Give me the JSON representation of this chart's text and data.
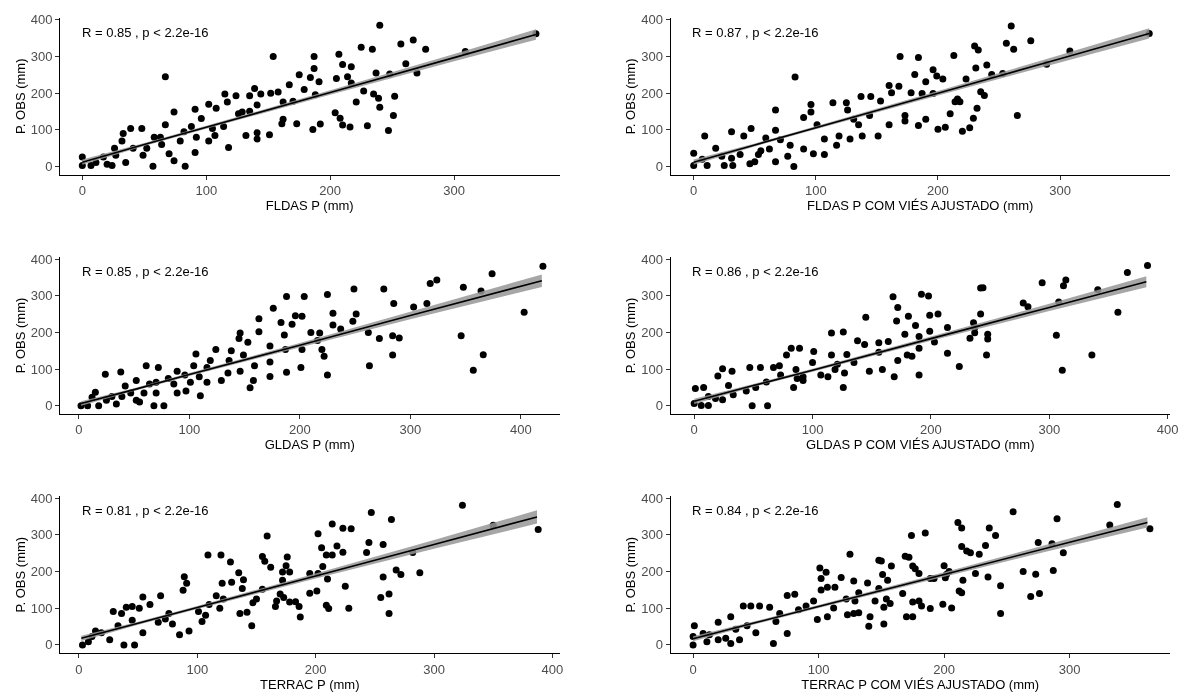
{
  "chart_data": [
    {
      "type": "scatter",
      "xlabel": "FLDAS P (mm)",
      "ylabel": "P. OBS (mm)",
      "xlim": [
        -18,
        385
      ],
      "ylim": [
        -22,
        405
      ],
      "xticks": [
        0,
        100,
        200,
        300
      ],
      "yticks": [
        0,
        100,
        200,
        300,
        400
      ],
      "grid": false,
      "marker": "circle",
      "annotations": [
        "R = 0.85 , p < 2.2e-16"
      ],
      "series": [
        {
          "color": "#000000",
          "x": [
            366,
            240,
            309,
            267,
            257,
            277,
            225,
            234,
            207,
            187,
            154,
            67,
            261,
            270,
            248,
            237,
            210,
            217,
            187,
            175,
            184,
            191,
            205,
            214,
            217,
            227,
            235,
            239,
            252,
            221,
            240,
            251,
            204,
            208,
            210,
            216,
            230,
            247,
            186,
            192,
            173,
            170,
            188,
            179,
            167,
            144,
            152,
            158,
            139,
            135,
            124,
            115,
            117,
            162,
            162,
            161,
            151,
            141,
            132,
            141,
            135,
            126,
            118,
            108,
            102,
            91,
            96,
            105,
            107,
            102,
            91,
            83,
            74,
            70,
            67,
            74,
            82,
            88,
            63,
            57,
            52,
            49,
            48,
            39,
            33,
            32,
            41,
            35,
            27,
            17,
            20,
            11,
            0,
            0,
            7,
            24,
            26,
            58,
            64,
            79,
            114,
            129,
            141,
            92
          ],
          "values": [
            362,
            385,
            314,
            345,
            334,
            320,
            325,
            320,
            306,
            300,
            300,
            245,
            280,
            255,
            252,
            255,
            278,
            272,
            267,
            250,
            243,
            231,
            240,
            245,
            228,
            206,
            198,
            186,
            192,
            176,
            162,
            139,
            147,
            132,
            113,
            108,
            111,
            98,
            101,
            116,
            117,
            178,
            196,
            210,
            223,
            198,
            200,
            203,
            213,
            193,
            193,
            198,
            176,
            176,
            129,
            117,
            87,
            92,
            85,
            75,
            151,
            144,
            52,
            159,
            170,
            156,
            131,
            104,
            85,
            70,
            38,
            1,
            16,
            35,
            114,
            149,
            95,
            109,
            80,
            1,
            50,
            31,
            104,
            104,
            90,
            70,
            50,
            11,
            31,
            26,
            6,
            11,
            26,
            3,
            3,
            3,
            50,
            80,
            60,
            70,
            109,
            149,
            168,
            80
          ]
        },
        {
          "type": "line",
          "marker": "none",
          "color": "#000000",
          "x": [
            0,
            50,
            100,
            200,
            300,
            366
          ],
          "values": [
            12,
            60,
            107,
            202,
            297,
            360
          ],
          "lower": [
            5,
            56,
            103,
            196,
            287,
            346
          ],
          "upper": [
            19,
            64,
            111,
            208,
            307,
            374
          ]
        }
      ]
    },
    {
      "type": "scatter",
      "xlabel": "FLDAS P COM VIÉS AJUSTADO (mm)",
      "ylabel": "P. OBS (mm)",
      "xlim": [
        -19,
        390
      ],
      "ylim": [
        -22,
        405
      ],
      "xticks": [
        0,
        100,
        200,
        300
      ],
      "yticks": [
        0,
        100,
        200,
        300,
        400
      ],
      "grid": false,
      "marker": "circle",
      "annotations": [
        "R = 0.87 , p < 2.2e-16"
      ],
      "series": [
        {
          "color": "#000000",
          "x": [
            373,
            260,
            276,
            256,
            262,
            230,
            233,
            213,
            184,
            169,
            83,
            308,
            289,
            253,
            244,
            240,
            231,
            223,
            196,
            199,
            204,
            190,
            181,
            168,
            162,
            160,
            178,
            187,
            196,
            235,
            238,
            216,
            214,
            218,
            232,
            229,
            265,
            210,
            190,
            184,
            200,
            206,
            220,
            226,
            173,
            173,
            160,
            153,
            151,
            144,
            137,
            145,
            125,
            114,
            126,
            131,
            135,
            138,
            128,
            119,
            117,
            107,
            101,
            96,
            96,
            90,
            90,
            98,
            82,
            79,
            71,
            67,
            67,
            62,
            55,
            59,
            47,
            41,
            31,
            50,
            46,
            38,
            31,
            23,
            18,
            9,
            0,
            0,
            7,
            11,
            25,
            32,
            53,
            67,
            77,
            107
          ],
          "values": [
            363,
            383,
            343,
            336,
            320,
            329,
            318,
            303,
            297,
            300,
            244,
            315,
            279,
            254,
            251,
            277,
            269,
            239,
            264,
            247,
            239,
            231,
            251,
            219,
            201,
            221,
            201,
            199,
            199,
            204,
            194,
            184,
            177,
            177,
            159,
            132,
            139,
            144,
            129,
            112,
            102,
            107,
            96,
            106,
            139,
            124,
            114,
            179,
            83,
            139,
            191,
            191,
            174,
            174,
            154,
            129,
            114,
            83,
            75,
            83,
            58,
            75,
            114,
            169,
            149,
            134,
            48,
            35,
            0,
            58,
            73,
            99,
            154,
            48,
            43,
            78,
            104,
            83,
            95,
            13,
            8,
            33,
            23,
            28,
            50,
            83,
            36,
            3,
            20,
            3,
            3,
            3,
            33,
            13,
            28,
            33
          ]
        },
        {
          "type": "line",
          "marker": "none",
          "color": "#000000",
          "x": [
            0,
            50,
            100,
            200,
            300,
            373
          ],
          "values": [
            12,
            59,
            106,
            200,
            294,
            363
          ],
          "lower": [
            5,
            55,
            102,
            194,
            284,
            349
          ],
          "upper": [
            19,
            63,
            110,
            206,
            304,
            377
          ]
        }
      ]
    },
    {
      "type": "scatter",
      "xlabel": "GLDAS P (mm)",
      "ylabel": "P. OBS (mm)",
      "xlim": [
        -17,
        435
      ],
      "ylim": [
        -22,
        405
      ],
      "xticks": [
        0,
        100,
        200,
        300,
        400
      ],
      "yticks": [
        0,
        100,
        200,
        300,
        400
      ],
      "grid": false,
      "marker": "circle",
      "annotations": [
        "R = 0.85 , p < 2.2e-16"
      ],
      "series": [
        {
          "color": "#000000",
          "x": [
            420,
            374,
            324,
            318,
            348,
            364,
            276,
            249,
            225,
            204,
            188,
            403,
            346,
            357,
            366,
            315,
            303,
            285,
            251,
            248,
            230,
            230,
            237,
            262,
            272,
            284,
            290,
            284,
            263,
            225,
            218,
            216,
            220,
            222,
            210,
            202,
            196,
            193,
            183,
            176,
            163,
            201,
            202,
            186,
            187,
            188,
            163,
            173,
            173,
            173,
            159,
            158,
            155,
            153,
            149,
            146,
            138,
            146,
            145,
            135,
            119,
            124,
            116,
            109,
            110,
            97,
            96,
            104,
            106,
            89,
            86,
            81,
            72,
            61,
            70,
            70,
            77,
            68,
            55,
            59,
            64,
            52,
            42,
            38,
            24,
            39,
            34,
            25,
            15,
            12,
            2,
            8,
            18,
            30,
            47,
            52,
            89,
            101,
            116,
            129,
            136
          ],
          "values": [
            380,
            360,
            343,
            333,
            323,
            313,
            318,
            318,
            303,
            298,
            298,
            255,
            191,
            97,
            139,
            279,
            269,
            279,
            250,
            230,
            252,
            220,
            209,
            200,
            183,
            191,
            185,
            138,
            109,
            84,
            198,
            178,
            153,
            135,
            200,
            244,
            245,
            222,
            227,
            266,
            237,
            104,
            153,
            193,
            153,
            91,
            202,
            163,
            119,
            80,
            109,
            69,
            49,
            173,
            138,
            94,
            150,
            198,
            183,
            89,
            123,
            153,
            104,
            79,
            27,
            40,
            84,
            109,
            141,
            94,
            59,
            74,
            104,
            109,
            64,
            35,
            0,
            0,
            10,
            35,
            59,
            69,
            54,
            92,
            86,
            25,
            5,
            15,
            37,
            23,
            0,
            0,
            0,
            25,
            35,
            15,
            35,
            64,
            64,
            69,
            123
          ]
        },
        {
          "type": "line",
          "marker": "none",
          "color": "#000000",
          "x": [
            2,
            50,
            100,
            200,
            300,
            419
          ],
          "values": [
            6,
            44,
            85,
            165,
            246,
            341
          ],
          "lower": [
            0,
            40,
            81,
            159,
            236,
            324
          ],
          "upper": [
            12,
            48,
            89,
            171,
            256,
            358
          ]
        }
      ]
    },
    {
      "type": "scatter",
      "xlabel": "GLDAS P COM VIÉS AJUSTADO (mm)",
      "ylabel": "P. OBS (mm)",
      "xlim": [
        -20,
        402
      ],
      "ylim": [
        -22,
        405
      ],
      "xticks": [
        0,
        100,
        200,
        300,
        400
      ],
      "yticks": [
        0,
        100,
        200,
        300,
        400
      ],
      "grid": false,
      "marker": "circle",
      "annotations": [
        "R = 0.86 , p < 2.2e-16"
      ],
      "series": [
        {
          "color": "#000000",
          "x": [
            383,
            366,
            314,
            312,
            294,
            341,
            242,
            244,
            192,
            198,
            168,
            358,
            306,
            336,
            311,
            308,
            278,
            282,
            242,
            206,
            199,
            214,
            236,
            237,
            237,
            233,
            248,
            248,
            247,
            224,
            214,
            203,
            199,
            190,
            190,
            190,
            187,
            181,
            172,
            171,
            178,
            184,
            180,
            172,
            169,
            164,
            159,
            156,
            156,
            148,
            145,
            144,
            138,
            135,
            129,
            127,
            126,
            126,
            116,
            116,
            121,
            113,
            107,
            101,
            100,
            92,
            87,
            89,
            82,
            86,
            84,
            78,
            72,
            73,
            62,
            67,
            56,
            49,
            47,
            52,
            44,
            33,
            32,
            24,
            20,
            18,
            24,
            12,
            8,
            1,
            0,
            6,
            12,
            29,
            61,
            92,
            119
          ],
          "values": [
            382,
            363,
            343,
            327,
            335,
            316,
            321,
            322,
            304,
            299,
            297,
            255,
            192,
            138,
            97,
            283,
            280,
            270,
            250,
            250,
            247,
            213,
            226,
            213,
            199,
            184,
            195,
            182,
            138,
            107,
            143,
            174,
            203,
            84,
            157,
            189,
            219,
            244,
            268,
            231,
            195,
            135,
            138,
            123,
            79,
            175,
            99,
            146,
            172,
            94,
            241,
            167,
            177,
            118,
            140,
            89,
            50,
            201,
            198,
            138,
            113,
            79,
            84,
            148,
            118,
            69,
            74,
            157,
            157,
            99,
            50,
            138,
            109,
            84,
            0,
            104,
            104,
            0,
            104,
            50,
            40,
            30,
            94,
            101,
            81,
            20,
            16,
            25,
            50,
            47,
            6,
            1,
            1,
            55,
            65,
            79,
            99
          ]
        },
        {
          "type": "line",
          "marker": "none",
          "color": "#000000",
          "x": [
            0,
            50,
            100,
            200,
            300,
            382
          ],
          "values": [
            12,
            55,
            97,
            183,
            268,
            338
          ],
          "lower": [
            5,
            51,
            93,
            177,
            258,
            323
          ],
          "upper": [
            19,
            59,
            101,
            189,
            278,
            353
          ]
        }
      ]
    },
    {
      "type": "scatter",
      "xlabel": "TERRAC P (mm)",
      "ylabel": "P. OBS (mm)",
      "xlim": [
        -16,
        406
      ],
      "ylim": [
        -22,
        405
      ],
      "xticks": [
        0,
        100,
        200,
        300,
        400
      ],
      "yticks": [
        0,
        100,
        200,
        300,
        400
      ],
      "grid": false,
      "marker": "circle",
      "annotations": [
        "R = 0.81 , p < 2.2e-16"
      ],
      "series": [
        {
          "color": "#000000",
          "x": [
            324,
            247,
            350,
            388,
            264,
            214,
            223,
            230,
            202,
            159,
            109,
            245,
            205,
            218,
            209,
            214,
            243,
            223,
            257,
            282,
            288,
            268,
            272,
            257,
            262,
            255,
            262,
            225,
            228,
            209,
            211,
            201,
            195,
            206,
            202,
            195,
            210,
            176,
            175,
            172,
            178,
            172,
            170,
            173,
            178,
            183,
            186,
            187,
            166,
            167,
            162,
            155,
            157,
            155,
            150,
            147,
            146,
            142,
            136,
            138,
            135,
            139,
            129,
            128,
            121,
            120,
            122,
            119,
            116,
            110,
            107,
            104,
            91,
            89,
            88,
            93,
            85,
            79,
            76,
            73,
            69,
            60,
            54,
            54,
            51,
            45,
            40,
            36,
            29,
            47,
            38,
            26,
            19,
            14,
            8,
            3,
            11,
            33,
            45,
            67,
            101
          ],
          "values": [
            381,
            361,
            326,
            315,
            342,
            330,
            318,
            317,
            303,
            297,
            245,
            279,
            265,
            270,
            245,
            245,
            252,
            253,
            274,
            252,
            197,
            204,
            192,
            185,
            139,
            129,
            86,
            160,
            100,
            108,
            99,
            147,
            141,
            214,
            195,
            195,
            180,
            240,
            216,
            199,
            199,
            176,
            139,
            129,
            117,
            118,
            105,
            76,
            105,
            120,
            212,
            241,
            228,
            152,
            125,
            115,
            52,
            89,
            86,
            154,
            197,
            178,
            171,
            226,
            168,
            245,
            125,
            100,
            134,
            110,
            81,
            64,
            168,
            186,
            149,
            38,
            28,
            57,
            86,
            71,
            134,
            110,
            33,
            131,
            100,
            105,
            103,
            86,
            91,
            0,
            0,
            14,
            33,
            38,
            9,
            0,
            23,
            52,
            67,
            62,
            91
          ]
        },
        {
          "type": "line",
          "marker": "none",
          "color": "#000000",
          "x": [
            2,
            50,
            100,
            200,
            300,
            387
          ],
          "values": [
            18,
            59,
            102,
            188,
            274,
            349
          ],
          "lower": [
            11,
            55,
            98,
            181,
            262,
            331
          ],
          "upper": [
            25,
            63,
            106,
            195,
            286,
            367
          ]
        }
      ]
    },
    {
      "type": "scatter",
      "xlabel": "TERRAC P COM VIÉS AJUSTADO (mm)",
      "ylabel": "P. OBS (mm)",
      "xlim": [
        -18,
        380
      ],
      "ylim": [
        -22,
        405
      ],
      "xticks": [
        0,
        100,
        200,
        300
      ],
      "yticks": [
        0,
        100,
        200,
        300,
        400
      ],
      "grid": false,
      "marker": "circle",
      "annotations": [
        "R = 0.84 , p < 2.2e-16"
      ],
      "series": [
        {
          "color": "#000000",
          "x": [
            364,
            338,
            332,
            290,
            255,
            211,
            214,
            236,
            241,
            174,
            185,
            125,
            275,
            233,
            286,
            214,
            221,
            218,
            228,
            295,
            287,
            263,
            273,
            225,
            235,
            215,
            200,
            202,
            204,
            201,
            199,
            206,
            212,
            214,
            245,
            245,
            269,
            276,
            189,
            192,
            180,
            175,
            172,
            169,
            177,
            180,
            175,
            175,
            170,
            182,
            189,
            167,
            158,
            155,
            151,
            150,
            148,
            154,
            152,
            152,
            157,
            148,
            145,
            141,
            140,
            139,
            132,
            132,
            128,
            129,
            128,
            123,
            122,
            118,
            113,
            107,
            106,
            101,
            102,
            102,
            99,
            107,
            96,
            90,
            81,
            75,
            64,
            69,
            66,
            75,
            61,
            53,
            46,
            40,
            43,
            37,
            30,
            26,
            20,
            20,
            13,
            8,
            1,
            0,
            0,
            11,
            30,
            34,
            50,
            84,
            112
          ],
          "values": [
            317,
            383,
            327,
            344,
            363,
            334,
            319,
            319,
            298,
            298,
            305,
            247,
            279,
            271,
            276,
            268,
            251,
            256,
            247,
            251,
            203,
            200,
            193,
            195,
            185,
            176,
            216,
            193,
            200,
            183,
            111,
            101,
            147,
            142,
            161,
            86,
            132,
            140,
            181,
            181,
            195,
            215,
            239,
            242,
            208,
            120,
            117,
            77,
            77,
            106,
            99,
            140,
            215,
            176,
            192,
            229,
            231,
            125,
            103,
            57,
            113,
            154,
            120,
            77,
            51,
            169,
            142,
            88,
            174,
            120,
            86,
            82,
            125,
            184,
            157,
            157,
            198,
            210,
            181,
            150,
            69,
            77,
            120,
            106,
            138,
            135,
            4,
            86,
            64,
            31,
            103,
            106,
            106,
            106,
            52,
            14,
            4,
            18,
            62,
            14,
            28,
            31,
            52,
            23,
            0,
            9,
            77,
            43,
            33,
            96,
            101
          ]
        },
        {
          "type": "line",
          "marker": "none",
          "color": "#000000",
          "x": [
            0,
            50,
            100,
            200,
            300,
            362
          ],
          "values": [
            17,
            61,
            105,
            192,
            280,
            334
          ],
          "lower": [
            10,
            57,
            101,
            186,
            270,
            320
          ],
          "upper": [
            24,
            65,
            109,
            198,
            290,
            348
          ]
        }
      ]
    }
  ]
}
